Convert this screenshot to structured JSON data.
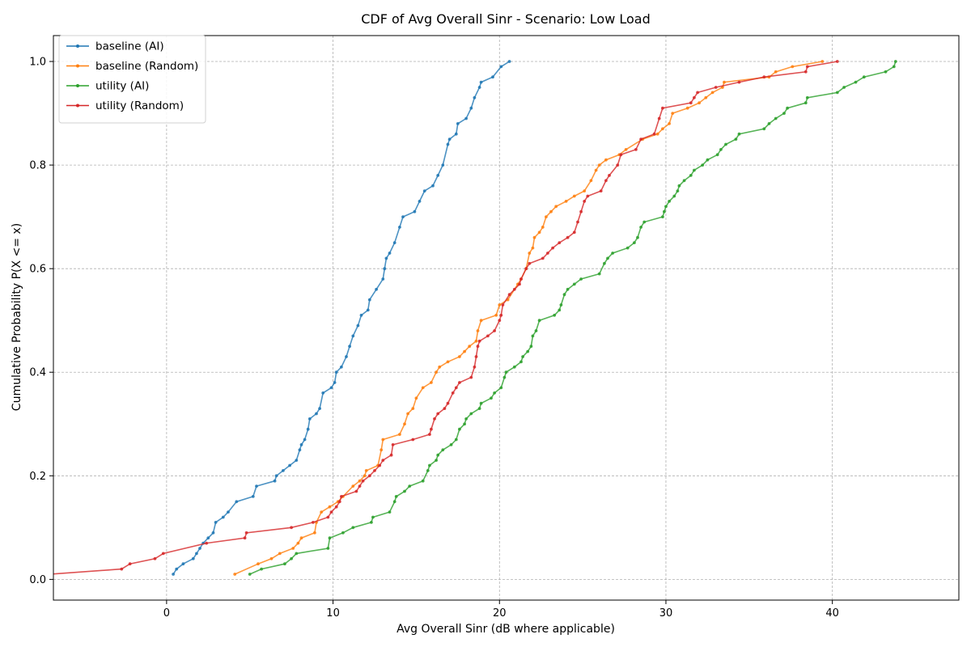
{
  "chart_data": {
    "type": "line",
    "title": "CDF of Avg Overall Sinr - Scenario: Low Load",
    "xlabel": "Avg Overall Sinr (dB where applicable)",
    "ylabel": "Cumulative Probability P(X <= x)",
    "xlim": [
      -6.8,
      47.6
    ],
    "ylim": [
      -0.04,
      1.05
    ],
    "xticks": [
      0,
      10,
      20,
      30,
      40
    ],
    "yticks": [
      0.0,
      0.2,
      0.4,
      0.6,
      0.8,
      1.0
    ],
    "xtick_labels": [
      "0",
      "10",
      "20",
      "30",
      "40"
    ],
    "ytick_labels": [
      "0.0",
      "0.2",
      "0.4",
      "0.6",
      "0.8",
      "1.0"
    ],
    "grid": true,
    "legend_position": "upper-left",
    "series": [
      {
        "name": "baseline (AI)",
        "color": "#1f77b4",
        "points": [
          [
            0.4,
            0.01
          ],
          [
            0.6,
            0.02
          ],
          [
            1.0,
            0.03
          ],
          [
            1.6,
            0.04
          ],
          [
            1.8,
            0.05
          ],
          [
            2.0,
            0.06
          ],
          [
            2.2,
            0.07
          ],
          [
            2.5,
            0.08
          ],
          [
            2.8,
            0.09
          ],
          [
            2.95,
            0.11
          ],
          [
            3.4,
            0.12
          ],
          [
            3.7,
            0.13
          ],
          [
            4.2,
            0.15
          ],
          [
            5.2,
            0.16
          ],
          [
            5.4,
            0.18
          ],
          [
            6.5,
            0.19
          ],
          [
            6.6,
            0.2
          ],
          [
            7.0,
            0.21
          ],
          [
            7.4,
            0.22
          ],
          [
            7.8,
            0.23
          ],
          [
            8.0,
            0.25
          ],
          [
            8.1,
            0.26
          ],
          [
            8.3,
            0.27
          ],
          [
            8.5,
            0.29
          ],
          [
            8.6,
            0.31
          ],
          [
            9.0,
            0.32
          ],
          [
            9.2,
            0.33
          ],
          [
            9.4,
            0.36
          ],
          [
            9.9,
            0.37
          ],
          [
            10.1,
            0.38
          ],
          [
            10.2,
            0.4
          ],
          [
            10.5,
            0.41
          ],
          [
            10.8,
            0.43
          ],
          [
            11.0,
            0.45
          ],
          [
            11.2,
            0.47
          ],
          [
            11.5,
            0.49
          ],
          [
            11.7,
            0.51
          ],
          [
            12.1,
            0.52
          ],
          [
            12.2,
            0.54
          ],
          [
            12.6,
            0.56
          ],
          [
            13.0,
            0.58
          ],
          [
            13.1,
            0.6
          ],
          [
            13.2,
            0.62
          ],
          [
            13.4,
            0.63
          ],
          [
            13.7,
            0.65
          ],
          [
            14.0,
            0.68
          ],
          [
            14.2,
            0.7
          ],
          [
            14.9,
            0.71
          ],
          [
            15.2,
            0.73
          ],
          [
            15.5,
            0.75
          ],
          [
            16.0,
            0.76
          ],
          [
            16.3,
            0.78
          ],
          [
            16.6,
            0.8
          ],
          [
            16.9,
            0.84
          ],
          [
            17.0,
            0.85
          ],
          [
            17.4,
            0.86
          ],
          [
            17.5,
            0.88
          ],
          [
            18.0,
            0.89
          ],
          [
            18.3,
            0.91
          ],
          [
            18.5,
            0.93
          ],
          [
            18.8,
            0.95
          ],
          [
            18.9,
            0.96
          ],
          [
            19.6,
            0.97
          ],
          [
            20.1,
            0.99
          ],
          [
            20.6,
            1.0
          ]
        ]
      },
      {
        "name": "baseline (Random)",
        "color": "#ff7f0e",
        "points": [
          [
            4.1,
            0.01
          ],
          [
            5.5,
            0.03
          ],
          [
            6.3,
            0.04
          ],
          [
            6.8,
            0.05
          ],
          [
            7.6,
            0.06
          ],
          [
            7.9,
            0.07
          ],
          [
            8.1,
            0.08
          ],
          [
            8.9,
            0.09
          ],
          [
            9.0,
            0.11
          ],
          [
            9.3,
            0.13
          ],
          [
            9.8,
            0.14
          ],
          [
            10.3,
            0.15
          ],
          [
            10.6,
            0.16
          ],
          [
            11.2,
            0.18
          ],
          [
            11.6,
            0.19
          ],
          [
            11.9,
            0.2
          ],
          [
            12.0,
            0.21
          ],
          [
            12.7,
            0.22
          ],
          [
            12.9,
            0.25
          ],
          [
            13.0,
            0.27
          ],
          [
            14.0,
            0.28
          ],
          [
            14.3,
            0.3
          ],
          [
            14.5,
            0.32
          ],
          [
            14.8,
            0.33
          ],
          [
            15.0,
            0.35
          ],
          [
            15.4,
            0.37
          ],
          [
            15.9,
            0.38
          ],
          [
            16.2,
            0.4
          ],
          [
            16.4,
            0.41
          ],
          [
            16.9,
            0.42
          ],
          [
            17.6,
            0.43
          ],
          [
            17.9,
            0.44
          ],
          [
            18.2,
            0.45
          ],
          [
            18.6,
            0.46
          ],
          [
            18.7,
            0.48
          ],
          [
            18.9,
            0.5
          ],
          [
            19.8,
            0.51
          ],
          [
            20.0,
            0.53
          ],
          [
            20.5,
            0.54
          ],
          [
            21.1,
            0.57
          ],
          [
            21.3,
            0.58
          ],
          [
            21.6,
            0.6
          ],
          [
            21.8,
            0.63
          ],
          [
            22.0,
            0.64
          ],
          [
            22.1,
            0.66
          ],
          [
            22.4,
            0.67
          ],
          [
            22.6,
            0.68
          ],
          [
            22.8,
            0.7
          ],
          [
            23.1,
            0.71
          ],
          [
            23.4,
            0.72
          ],
          [
            24.0,
            0.73
          ],
          [
            24.5,
            0.74
          ],
          [
            25.1,
            0.75
          ],
          [
            25.5,
            0.77
          ],
          [
            25.8,
            0.79
          ],
          [
            26.0,
            0.8
          ],
          [
            26.4,
            0.81
          ],
          [
            27.2,
            0.82
          ],
          [
            27.6,
            0.83
          ],
          [
            28.6,
            0.85
          ],
          [
            29.5,
            0.86
          ],
          [
            29.8,
            0.87
          ],
          [
            30.2,
            0.88
          ],
          [
            30.4,
            0.9
          ],
          [
            31.3,
            0.91
          ],
          [
            32.0,
            0.92
          ],
          [
            32.4,
            0.93
          ],
          [
            32.8,
            0.94
          ],
          [
            33.4,
            0.95
          ],
          [
            33.5,
            0.96
          ],
          [
            36.2,
            0.97
          ],
          [
            36.6,
            0.98
          ],
          [
            37.6,
            0.99
          ],
          [
            39.4,
            1.0
          ]
        ]
      },
      {
        "name": "utility (AI)",
        "color": "#2ca02c",
        "points": [
          [
            5.0,
            0.01
          ],
          [
            5.7,
            0.02
          ],
          [
            7.1,
            0.03
          ],
          [
            7.5,
            0.04
          ],
          [
            7.8,
            0.05
          ],
          [
            9.7,
            0.06
          ],
          [
            9.8,
            0.08
          ],
          [
            10.6,
            0.09
          ],
          [
            11.2,
            0.1
          ],
          [
            12.3,
            0.11
          ],
          [
            12.4,
            0.12
          ],
          [
            13.4,
            0.13
          ],
          [
            13.7,
            0.15
          ],
          [
            13.8,
            0.16
          ],
          [
            14.3,
            0.17
          ],
          [
            14.6,
            0.18
          ],
          [
            15.4,
            0.19
          ],
          [
            15.7,
            0.21
          ],
          [
            15.8,
            0.22
          ],
          [
            16.2,
            0.23
          ],
          [
            16.3,
            0.24
          ],
          [
            16.6,
            0.25
          ],
          [
            17.1,
            0.26
          ],
          [
            17.4,
            0.27
          ],
          [
            17.6,
            0.29
          ],
          [
            17.9,
            0.3
          ],
          [
            18.0,
            0.31
          ],
          [
            18.3,
            0.32
          ],
          [
            18.8,
            0.33
          ],
          [
            18.9,
            0.34
          ],
          [
            19.5,
            0.35
          ],
          [
            19.7,
            0.36
          ],
          [
            20.1,
            0.37
          ],
          [
            20.3,
            0.39
          ],
          [
            20.4,
            0.4
          ],
          [
            20.9,
            0.41
          ],
          [
            21.3,
            0.42
          ],
          [
            21.4,
            0.43
          ],
          [
            21.7,
            0.44
          ],
          [
            21.9,
            0.45
          ],
          [
            22.0,
            0.47
          ],
          [
            22.2,
            0.48
          ],
          [
            22.4,
            0.5
          ],
          [
            23.3,
            0.51
          ],
          [
            23.6,
            0.52
          ],
          [
            23.7,
            0.53
          ],
          [
            23.9,
            0.55
          ],
          [
            24.1,
            0.56
          ],
          [
            24.5,
            0.57
          ],
          [
            24.9,
            0.58
          ],
          [
            26.0,
            0.59
          ],
          [
            26.3,
            0.61
          ],
          [
            26.5,
            0.62
          ],
          [
            26.8,
            0.63
          ],
          [
            27.7,
            0.64
          ],
          [
            28.1,
            0.65
          ],
          [
            28.3,
            0.66
          ],
          [
            28.5,
            0.68
          ],
          [
            28.7,
            0.69
          ],
          [
            29.8,
            0.7
          ],
          [
            29.9,
            0.71
          ],
          [
            30.0,
            0.72
          ],
          [
            30.2,
            0.73
          ],
          [
            30.5,
            0.74
          ],
          [
            30.7,
            0.75
          ],
          [
            30.8,
            0.76
          ],
          [
            31.1,
            0.77
          ],
          [
            31.5,
            0.78
          ],
          [
            31.7,
            0.79
          ],
          [
            32.2,
            0.8
          ],
          [
            32.5,
            0.81
          ],
          [
            33.1,
            0.82
          ],
          [
            33.3,
            0.83
          ],
          [
            33.6,
            0.84
          ],
          [
            34.2,
            0.85
          ],
          [
            34.4,
            0.86
          ],
          [
            35.9,
            0.87
          ],
          [
            36.2,
            0.88
          ],
          [
            36.6,
            0.89
          ],
          [
            37.1,
            0.9
          ],
          [
            37.3,
            0.91
          ],
          [
            38.4,
            0.92
          ],
          [
            38.5,
            0.93
          ],
          [
            40.3,
            0.94
          ],
          [
            40.7,
            0.95
          ],
          [
            41.4,
            0.96
          ],
          [
            41.9,
            0.97
          ],
          [
            43.2,
            0.98
          ],
          [
            43.7,
            0.99
          ],
          [
            43.8,
            1.0
          ]
        ]
      },
      {
        "name": "utility (Random)",
        "color": "#d62728",
        "points": [
          [
            -7.0,
            0.01
          ],
          [
            -2.7,
            0.02
          ],
          [
            -2.2,
            0.03
          ],
          [
            -0.7,
            0.04
          ],
          [
            -0.2,
            0.05
          ],
          [
            2.4,
            0.07
          ],
          [
            4.7,
            0.08
          ],
          [
            4.8,
            0.09
          ],
          [
            7.5,
            0.1
          ],
          [
            8.8,
            0.11
          ],
          [
            9.7,
            0.12
          ],
          [
            9.9,
            0.13
          ],
          [
            10.2,
            0.14
          ],
          [
            10.4,
            0.15
          ],
          [
            10.5,
            0.16
          ],
          [
            11.4,
            0.17
          ],
          [
            11.6,
            0.18
          ],
          [
            11.8,
            0.19
          ],
          [
            12.2,
            0.2
          ],
          [
            12.5,
            0.21
          ],
          [
            12.8,
            0.22
          ],
          [
            13.0,
            0.23
          ],
          [
            13.5,
            0.24
          ],
          [
            13.6,
            0.26
          ],
          [
            14.8,
            0.27
          ],
          [
            15.8,
            0.28
          ],
          [
            15.9,
            0.29
          ],
          [
            16.1,
            0.31
          ],
          [
            16.3,
            0.32
          ],
          [
            16.7,
            0.33
          ],
          [
            16.9,
            0.34
          ],
          [
            17.2,
            0.36
          ],
          [
            17.4,
            0.37
          ],
          [
            17.6,
            0.38
          ],
          [
            18.3,
            0.39
          ],
          [
            18.5,
            0.41
          ],
          [
            18.6,
            0.43
          ],
          [
            18.7,
            0.45
          ],
          [
            18.8,
            0.46
          ],
          [
            19.3,
            0.47
          ],
          [
            19.7,
            0.48
          ],
          [
            20.0,
            0.5
          ],
          [
            20.1,
            0.51
          ],
          [
            20.2,
            0.53
          ],
          [
            20.6,
            0.55
          ],
          [
            20.9,
            0.56
          ],
          [
            21.2,
            0.57
          ],
          [
            21.3,
            0.58
          ],
          [
            21.6,
            0.6
          ],
          [
            21.8,
            0.61
          ],
          [
            22.6,
            0.62
          ],
          [
            22.9,
            0.63
          ],
          [
            23.2,
            0.64
          ],
          [
            23.6,
            0.65
          ],
          [
            24.1,
            0.66
          ],
          [
            24.5,
            0.67
          ],
          [
            24.7,
            0.69
          ],
          [
            24.9,
            0.71
          ],
          [
            25.1,
            0.73
          ],
          [
            25.3,
            0.74
          ],
          [
            26.1,
            0.75
          ],
          [
            26.4,
            0.77
          ],
          [
            26.6,
            0.78
          ],
          [
            27.1,
            0.8
          ],
          [
            27.3,
            0.82
          ],
          [
            28.2,
            0.83
          ],
          [
            28.5,
            0.85
          ],
          [
            29.3,
            0.86
          ],
          [
            29.6,
            0.89
          ],
          [
            29.8,
            0.91
          ],
          [
            31.5,
            0.92
          ],
          [
            31.7,
            0.93
          ],
          [
            31.9,
            0.94
          ],
          [
            33.0,
            0.95
          ],
          [
            34.4,
            0.96
          ],
          [
            35.9,
            0.97
          ],
          [
            38.4,
            0.98
          ],
          [
            38.5,
            0.99
          ],
          [
            40.3,
            1.0
          ]
        ]
      }
    ]
  }
}
